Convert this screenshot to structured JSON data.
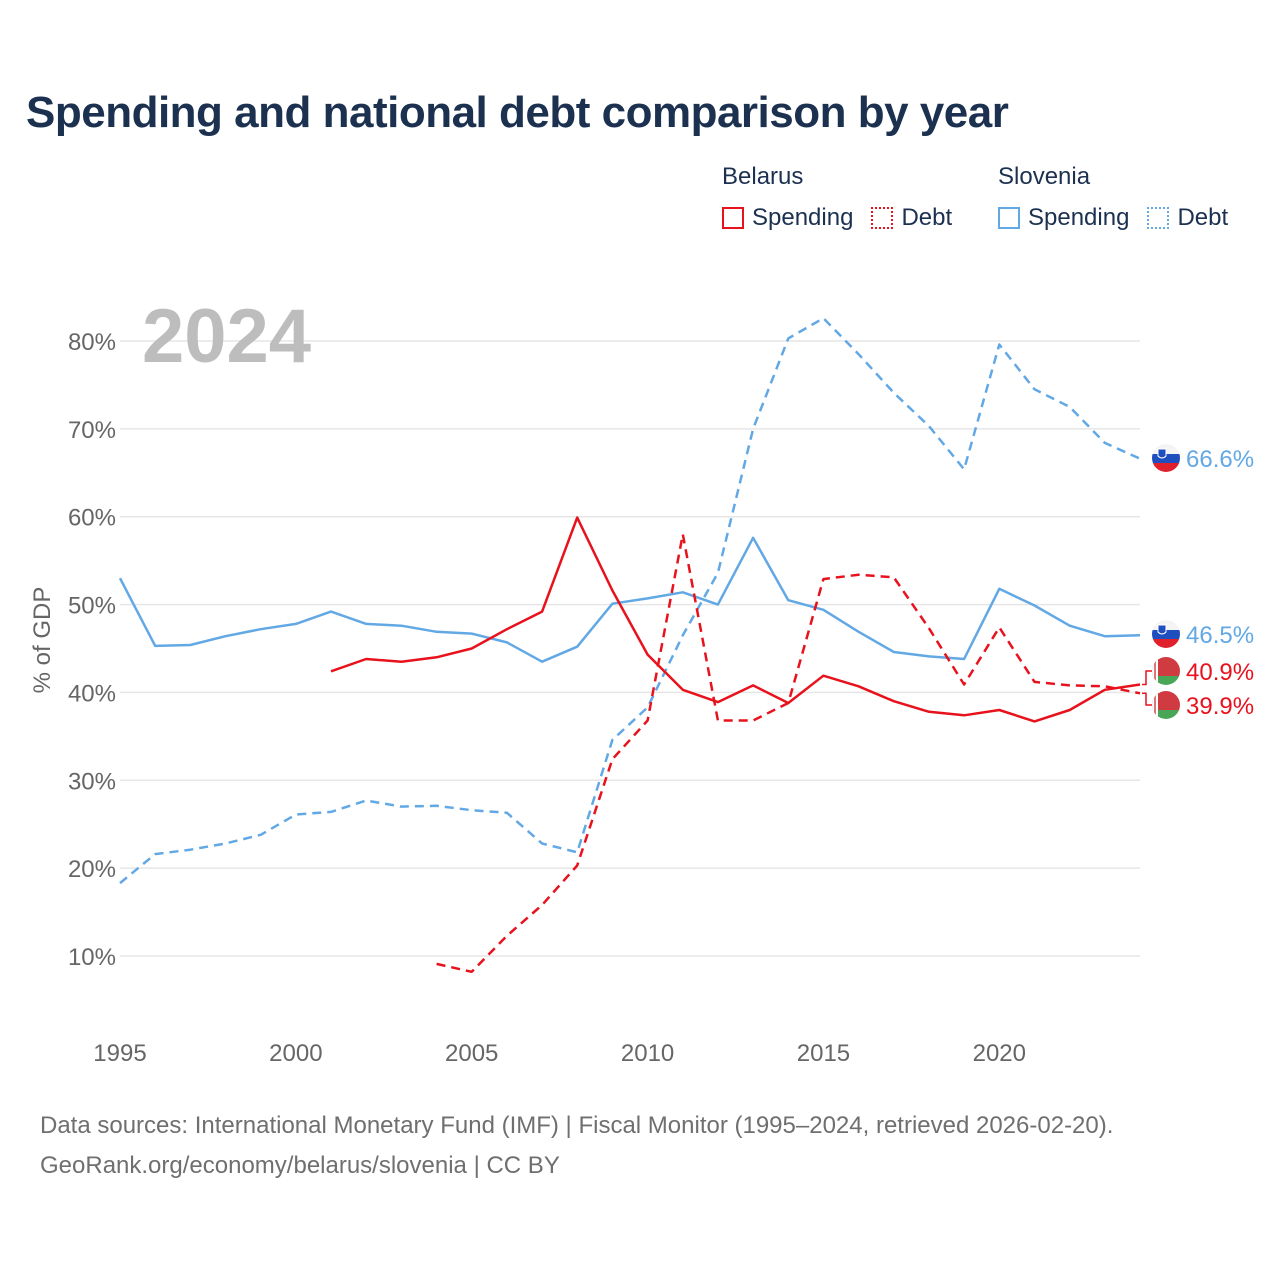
{
  "title": "Spending and national debt comparison by year",
  "legend": {
    "groups": [
      {
        "country": "Belarus",
        "items": [
          {
            "label": "Spending",
            "style": "solid"
          },
          {
            "label": "Debt",
            "style": "dotted"
          }
        ],
        "color": "#e8121d"
      },
      {
        "country": "Slovenia",
        "items": [
          {
            "label": "Spending",
            "style": "solid"
          },
          {
            "label": "Debt",
            "style": "dotted"
          }
        ],
        "color": "#62a8e5"
      }
    ]
  },
  "year_watermark": "2024",
  "footer": {
    "line1": "Data sources: International Monetary Fund (IMF) | Fiscal Monitor (1995–2024, retrieved 2026-02-20).",
    "line2": "GeoRank.org/economy/belarus/slovenia | CC BY"
  },
  "chart_data": {
    "type": "line",
    "title": "Spending and national debt comparison by year",
    "xlabel": "",
    "ylabel": "% of GDP",
    "xlim": [
      1995,
      2024
    ],
    "ylim": [
      0,
      85
    ],
    "x_ticks": [
      1995,
      2000,
      2005,
      2010,
      2015,
      2020
    ],
    "x_tick_labels": [
      "1995",
      "2000",
      "2005",
      "2010",
      "2015",
      "2020"
    ],
    "y_ticks": [
      10,
      20,
      30,
      40,
      50,
      60,
      70,
      80
    ],
    "y_tick_labels": [
      "10%",
      "20%",
      "30%",
      "40%",
      "50%",
      "60%",
      "70%",
      "80%"
    ],
    "grid": true,
    "legend_position": "top-right",
    "series": [
      {
        "name": "Slovenia Debt",
        "country": "Slovenia",
        "metric": "Debt",
        "color": "#62a8e5",
        "style": "dashed",
        "end_label": "66.6%",
        "x": [
          1995,
          1996,
          1997,
          1998,
          1999,
          2000,
          2001,
          2002,
          2003,
          2004,
          2005,
          2006,
          2007,
          2008,
          2009,
          2010,
          2011,
          2012,
          2013,
          2014,
          2015,
          2016,
          2017,
          2018,
          2019,
          2020,
          2021,
          2022,
          2023,
          2024
        ],
        "values": [
          18.3,
          21.6,
          22.1,
          22.8,
          23.8,
          26.1,
          26.4,
          27.7,
          27.0,
          27.1,
          26.6,
          26.3,
          22.8,
          21.8,
          34.6,
          38.3,
          46.5,
          53.6,
          70.0,
          80.3,
          82.6,
          78.5,
          74.1,
          70.3,
          65.4,
          79.6,
          74.5,
          72.5,
          68.4,
          66.6
        ]
      },
      {
        "name": "Slovenia Spending",
        "country": "Slovenia",
        "metric": "Spending",
        "color": "#62a8e5",
        "style": "solid",
        "end_label": "46.5%",
        "x": [
          1995,
          1996,
          1997,
          1998,
          1999,
          2000,
          2001,
          2002,
          2003,
          2004,
          2005,
          2006,
          2007,
          2008,
          2009,
          2010,
          2011,
          2012,
          2013,
          2014,
          2015,
          2016,
          2017,
          2018,
          2019,
          2020,
          2021,
          2022,
          2023,
          2024
        ],
        "values": [
          53.0,
          45.3,
          45.4,
          46.4,
          47.2,
          47.8,
          49.2,
          47.8,
          47.6,
          46.9,
          46.7,
          45.7,
          43.5,
          45.2,
          50.1,
          50.7,
          51.4,
          50.0,
          57.6,
          50.5,
          49.4,
          46.9,
          44.6,
          44.1,
          43.8,
          51.8,
          49.9,
          47.6,
          46.4,
          46.5
        ]
      },
      {
        "name": "Belarus Spending",
        "country": "Belarus",
        "metric": "Spending",
        "color": "#e8121d",
        "style": "solid",
        "end_label": "40.9%",
        "x": [
          2001,
          2002,
          2003,
          2004,
          2005,
          2006,
          2007,
          2008,
          2009,
          2010,
          2011,
          2012,
          2013,
          2014,
          2015,
          2016,
          2017,
          2018,
          2019,
          2020,
          2021,
          2022,
          2023,
          2024
        ],
        "values": [
          42.4,
          43.8,
          43.5,
          44.0,
          45.0,
          47.2,
          49.2,
          59.9,
          51.6,
          44.3,
          40.3,
          38.9,
          40.8,
          38.8,
          41.9,
          40.7,
          39.0,
          37.8,
          37.4,
          38.0,
          36.7,
          38.0,
          40.3,
          40.9
        ]
      },
      {
        "name": "Belarus Debt",
        "country": "Belarus",
        "metric": "Debt",
        "color": "#e8121d",
        "style": "dashed",
        "end_label": "39.9%",
        "x": [
          2004,
          2005,
          2006,
          2007,
          2008,
          2009,
          2010,
          2011,
          2012,
          2013,
          2014,
          2015,
          2016,
          2017,
          2018,
          2019,
          2020,
          2021,
          2022,
          2023,
          2024
        ],
        "values": [
          9.1,
          8.2,
          12.3,
          15.8,
          20.3,
          32.4,
          36.8,
          58.0,
          36.8,
          36.8,
          38.8,
          52.9,
          53.4,
          53.1,
          47.3,
          40.9,
          47.4,
          41.2,
          40.8,
          40.7,
          39.9
        ]
      }
    ]
  }
}
